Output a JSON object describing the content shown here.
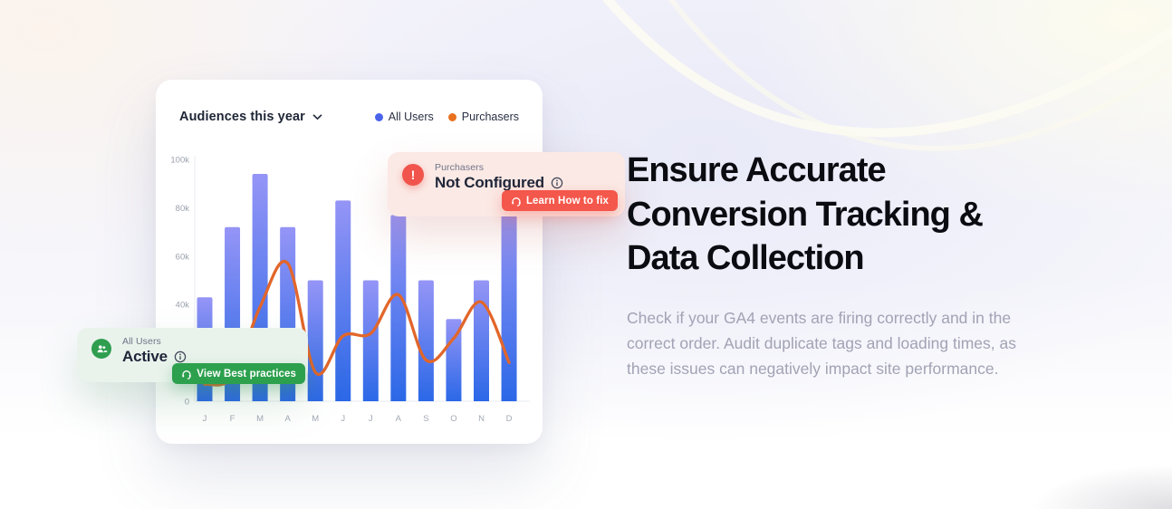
{
  "page": {
    "heading_lines": [
      "Ensure Accurate",
      "Conversion Tracking &",
      "Data Collection"
    ],
    "description": "Check if your GA4 events are firing correctly and in the correct order. Audit duplicate tags and loading times, as these issues can negatively impact site performance."
  },
  "card": {
    "title": "Audiences this year",
    "legend": [
      {
        "label": "All Users",
        "color": "#4a63e9"
      },
      {
        "label": "Purchasers",
        "color": "#e8711f"
      }
    ]
  },
  "chart_data": {
    "type": "bar",
    "title": "Audiences this year",
    "categories": [
      "J",
      "F",
      "M",
      "A",
      "M",
      "J",
      "J",
      "A",
      "S",
      "O",
      "N",
      "D"
    ],
    "series": [
      {
        "name": "All Users",
        "type": "bar",
        "values": [
          43,
          72,
          94,
          72,
          50,
          83,
          50,
          77,
          50,
          34,
          50,
          78
        ],
        "color_top": "#9595f6",
        "color_bottom": "#2b68e7"
      },
      {
        "name": "Purchasers",
        "type": "line",
        "values": [
          7,
          10,
          39,
          57,
          12,
          27,
          28,
          44,
          17,
          26,
          41,
          16
        ],
        "color": "#e2662a"
      }
    ],
    "units": "thousands",
    "y_ticks": [
      {
        "label": "100k",
        "value": 100
      },
      {
        "label": "80k",
        "value": 80
      },
      {
        "label": "60k",
        "value": 60
      },
      {
        "label": "40k",
        "value": 40
      },
      {
        "label": "0",
        "value": 0
      }
    ],
    "ylim": [
      0,
      100
    ],
    "grid": false,
    "legend_position": "top-right"
  },
  "tooltip_error": {
    "category": "Purchasers",
    "status": "Not Configured",
    "button_label": "Learn How to fix",
    "accent": "#f0544c",
    "bg": "#fbe9e5"
  },
  "tooltip_ok": {
    "category": "All Users",
    "status": "Active",
    "button_label": "View Best practices",
    "accent": "#2f9e4f",
    "bg": "#e9f3ec"
  }
}
